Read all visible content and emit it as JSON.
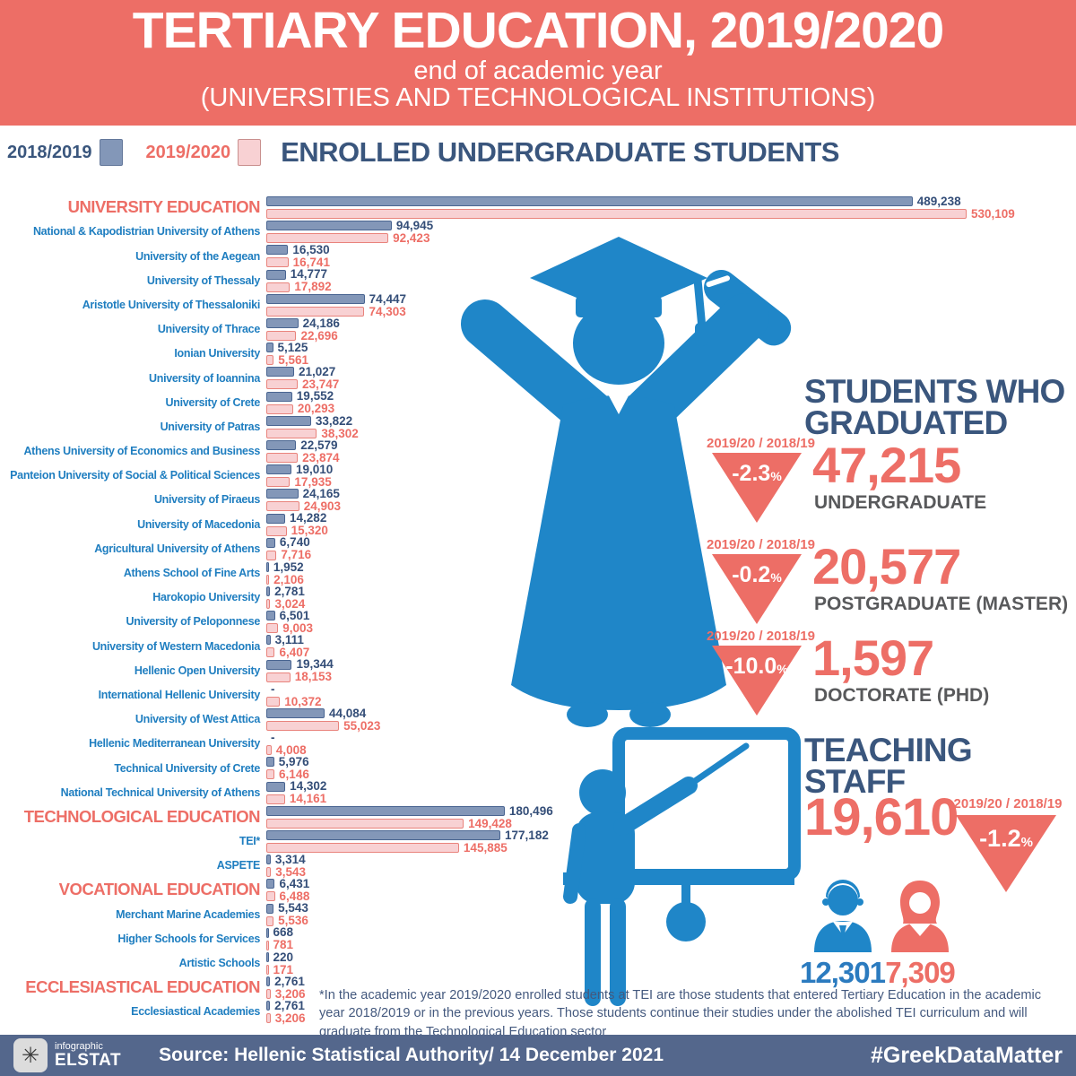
{
  "header": {
    "title": "TERTIARY EDUCATION, 2019/2020",
    "subtitle1": "end of academic year",
    "subtitle2": "(UNIVERSITIES AND TECHNOLOGICAL INSTITUTIONS)"
  },
  "legend": {
    "series1_label": "2018/2019",
    "series2_label": "2019/2020",
    "heading": "ENROLLED UNDERGRADUATE STUDENTS"
  },
  "colors": {
    "salmon": "#ED6E66",
    "navy": "#3A567D",
    "value_navy": "#344E78",
    "label_blue": "#1F7EC0",
    "bar_blue_fill": "#8397B8",
    "bar_blue_border": "#4A6591",
    "bar_pink_fill": "#F8D1D3",
    "bar_pink_border": "#E9837C",
    "figure_blue": "#1F86C8",
    "dark_gray": "#58595B",
    "footer_bg": "#54678C"
  },
  "chart_data": {
    "type": "bar",
    "orientation": "horizontal",
    "series_names": [
      "2018/2019",
      "2019/2020"
    ],
    "xmax": 530109,
    "rows": [
      {
        "label": "UNIVERSITY EDUCATION",
        "section": true,
        "v2018": 489238,
        "d2018": "489,238",
        "v2019": 530109,
        "d2019": "530,109"
      },
      {
        "label": "National & Kapodistrian University of Athens",
        "section": false,
        "v2018": 94945,
        "d2018": "94,945",
        "v2019": 92423,
        "d2019": "92,423"
      },
      {
        "label": "University of the Aegean",
        "section": false,
        "v2018": 16530,
        "d2018": "16,530",
        "v2019": 16741,
        "d2019": "16,741"
      },
      {
        "label": "University of Thessaly",
        "section": false,
        "v2018": 14777,
        "d2018": "14,777",
        "v2019": 17892,
        "d2019": "17,892"
      },
      {
        "label": "Aristotle University of Thessaloniki",
        "section": false,
        "v2018": 74447,
        "d2018": "74,447",
        "v2019": 74303,
        "d2019": "74,303"
      },
      {
        "label": "University of Thrace",
        "section": false,
        "v2018": 24186,
        "d2018": "24,186",
        "v2019": 22696,
        "d2019": "22,696"
      },
      {
        "label": "Ionian University",
        "section": false,
        "v2018": 5125,
        "d2018": "5,125",
        "v2019": 5561,
        "d2019": "5,561"
      },
      {
        "label": "University of Ioannina",
        "section": false,
        "v2018": 21027,
        "d2018": "21,027",
        "v2019": 23747,
        "d2019": "23,747"
      },
      {
        "label": "University of Crete",
        "section": false,
        "v2018": 19552,
        "d2018": "19,552",
        "v2019": 20293,
        "d2019": "20,293"
      },
      {
        "label": "University of Patras",
        "section": false,
        "v2018": 33822,
        "d2018": "33,822",
        "v2019": 38302,
        "d2019": "38,302"
      },
      {
        "label": "Athens University of Economics and Business",
        "section": false,
        "v2018": 22579,
        "d2018": "22,579",
        "v2019": 23874,
        "d2019": "23,874"
      },
      {
        "label": "Panteion University of Social & Political Sciences",
        "section": false,
        "v2018": 19010,
        "d2018": "19,010",
        "v2019": 17935,
        "d2019": "17,935"
      },
      {
        "label": "University of Piraeus",
        "section": false,
        "v2018": 24165,
        "d2018": "24,165",
        "v2019": 24903,
        "d2019": "24,903"
      },
      {
        "label": "University of Macedonia",
        "section": false,
        "v2018": 14282,
        "d2018": "14,282",
        "v2019": 15320,
        "d2019": "15,320"
      },
      {
        "label": "Agricultural University of Athens",
        "section": false,
        "v2018": 6740,
        "d2018": "6,740",
        "v2019": 7716,
        "d2019": "7,716"
      },
      {
        "label": "Athens School of Fine Arts",
        "section": false,
        "v2018": 1952,
        "d2018": "1,952",
        "v2019": 2106,
        "d2019": "2,106"
      },
      {
        "label": "Harokopio University",
        "section": false,
        "v2018": 2781,
        "d2018": "2,781",
        "v2019": 3024,
        "d2019": "3,024"
      },
      {
        "label": "University of Peloponnese",
        "section": false,
        "v2018": 6501,
        "d2018": "6,501",
        "v2019": 9003,
        "d2019": "9,003"
      },
      {
        "label": "University of Western Macedonia",
        "section": false,
        "v2018": 3111,
        "d2018": "3,111",
        "v2019": 6407,
        "d2019": "6,407"
      },
      {
        "label": "Hellenic Open University",
        "section": false,
        "v2018": 19344,
        "d2018": "19,344",
        "v2019": 18153,
        "d2019": "18,153"
      },
      {
        "label": "International Hellenic University",
        "section": false,
        "v2018": null,
        "d2018": "-",
        "v2019": 10372,
        "d2019": "10,372"
      },
      {
        "label": "University of West Attica",
        "section": false,
        "v2018": 44084,
        "d2018": "44,084",
        "v2019": 55023,
        "d2019": "55,023"
      },
      {
        "label": "Hellenic Mediterranean University",
        "section": false,
        "v2018": null,
        "d2018": "-",
        "v2019": 4008,
        "d2019": "4,008"
      },
      {
        "label": "Technical University of Crete",
        "section": false,
        "v2018": 5976,
        "d2018": "5,976",
        "v2019": 6146,
        "d2019": "6,146"
      },
      {
        "label": "National Technical University of Athens",
        "section": false,
        "v2018": 14302,
        "d2018": "14,302",
        "v2019": 14161,
        "d2019": "14,161"
      },
      {
        "label": "TECHNOLOGICAL EDUCATION",
        "section": true,
        "v2018": 180496,
        "d2018": "180,496",
        "v2019": 149428,
        "d2019": "149,428"
      },
      {
        "label": "TEI*",
        "section": false,
        "v2018": 177182,
        "d2018": "177,182",
        "v2019": 145885,
        "d2019": "145,885"
      },
      {
        "label": "ASPETE",
        "section": false,
        "v2018": 3314,
        "d2018": "3,314",
        "v2019": 3543,
        "d2019": "3,543"
      },
      {
        "label": "VOCATIONAL EDUCATION",
        "section": true,
        "v2018": 6431,
        "d2018": "6,431",
        "v2019": 6488,
        "d2019": "6,488"
      },
      {
        "label": "Merchant Marine Academies",
        "section": false,
        "v2018": 5543,
        "d2018": "5,543",
        "v2019": 5536,
        "d2019": "5,536"
      },
      {
        "label": "Higher Schools for Services",
        "section": false,
        "v2018": 668,
        "d2018": "668",
        "v2019": 781,
        "d2019": "781"
      },
      {
        "label": "Artistic Schools",
        "section": false,
        "v2018": 220,
        "d2018": "220",
        "v2019": 171,
        "d2019": "171"
      },
      {
        "label": "ECCLESIASTICAL EDUCATION",
        "section": true,
        "v2018": 2761,
        "d2018": "2,761",
        "v2019": 3206,
        "d2019": "3,206"
      },
      {
        "label": "Ecclesiastical Academies",
        "section": false,
        "v2018": 2761,
        "d2018": "2,761",
        "v2019": 3206,
        "d2019": "3,206"
      }
    ]
  },
  "graduates": {
    "heading_line1": "STUDENTS WHO",
    "heading_line2": "GRADUATED",
    "items": [
      {
        "compare_label": "2019/20 / 2018/19",
        "change": "-2.3",
        "pct": "%",
        "value": "47,215",
        "label": "UNDERGRADUATE"
      },
      {
        "compare_label": "2019/20 / 2018/19",
        "change": "-0.2",
        "pct": "%",
        "value": "20,577",
        "label": "POSTGRADUATE (MASTER)"
      },
      {
        "compare_label": "2019/20 / 2018/19",
        "change": "-10.0",
        "pct": "%",
        "value": "1,597",
        "label": "DOCTORATE (PHD)"
      }
    ]
  },
  "teaching": {
    "heading_line1": "TEACHING",
    "heading_line2": "STAFF",
    "total": "19,610",
    "compare_label": "2019/20 / 2018/19",
    "change": "-1.2",
    "pct": "%",
    "male_count": "12,301",
    "female_count": "7,309"
  },
  "footnote": "*In the academic year 2019/2020 enrolled students at TEI are those students that entered Tertiary Education in the academic year 2018/2019 or in the previous years. Those students continue their studies under the abolished TEI curriculum and will graduate from the Technological Education sector",
  "footer": {
    "logo_glyph": "✳",
    "logo_small": "infographic",
    "logo_main": "ELSTAT",
    "source": "Source: Hellenic Statistical Authority/ 14 December 2021",
    "hashtag": "#GreekDataMatter"
  }
}
